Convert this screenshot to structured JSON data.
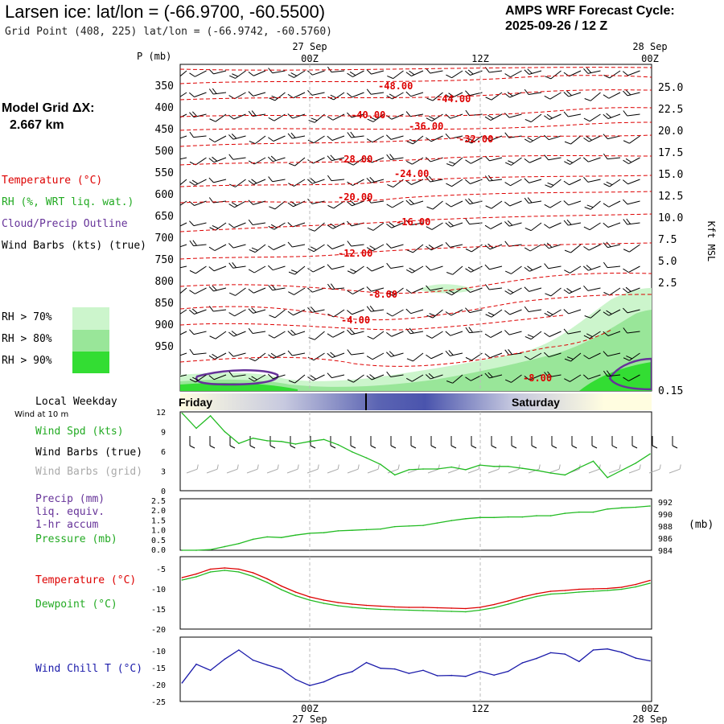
{
  "header": {
    "title": "Larsen ice:  lat/lon = (-66.9700, -60.5500)",
    "subtitle": "Grid Point (408, 225) lat/lon = (-66.9742, -60.5760)",
    "cycle_line1": "AMPS WRF Forecast Cycle:",
    "cycle_line2": "2025-09-26 / 12  Z"
  },
  "time_axis": {
    "top_labels": [
      {
        "day": "27 Sep",
        "hour": "00Z"
      },
      {
        "day": "",
        "hour": "12Z"
      },
      {
        "day": "28 Sep",
        "hour": "00Z"
      }
    ],
    "bottom_labels": [
      {
        "hour": "00Z",
        "day": "27 Sep"
      },
      {
        "hour": "12Z",
        "day": ""
      },
      {
        "hour": "00Z",
        "day": "28 Sep"
      }
    ]
  },
  "left_legend": {
    "model_grid_title": "Model Grid ΔX:",
    "model_grid_value": "2.667 km",
    "temperature": "Temperature (°C)",
    "rh": "RH (%, WRT liq. wat.)",
    "cloud": "Cloud/Precip Outline",
    "wind": "Wind Barbs (kts) (true)",
    "rh_levels": [
      "RH > 70%",
      "RH > 80%",
      "RH > 90%"
    ],
    "rh_colors": [
      "#ccf5cc",
      "#99e699",
      "#33dd33"
    ]
  },
  "colors": {
    "temperature": "#dd0000",
    "rh": "#22aa22",
    "cloud": "#663399",
    "dewpoint": "#22bb22",
    "windchill": "#1a1aaa",
    "grid_wind": "#aaaaaa"
  },
  "chart_data": [
    {
      "type": "heatmap",
      "name": "vertical cross-section",
      "y_axis_label": "P (mb)",
      "pressure_ticks": [
        "350",
        "400",
        "450",
        "500",
        "550",
        "600",
        "650",
        "700",
        "750",
        "800",
        "850",
        "900",
        "950"
      ],
      "height_axis_label": "Kft MSL",
      "height_ticks": [
        "25.0",
        "22.5",
        "20.0",
        "17.5",
        "15.0",
        "12.5",
        "10.0",
        "7.5",
        "5.0",
        "2.5",
        "0.15"
      ],
      "isotherm_labels": [
        "-48.00",
        "-44.00",
        "-40.00",
        "-36.00",
        "-32.00",
        "-28.00",
        "-24.00",
        "-20.00",
        "-16.00",
        "-12.00",
        "-8.00",
        "-4.00",
        "-8.00"
      ]
    },
    {
      "type": "table",
      "name": "local weekday bar",
      "title": "Local Weekday",
      "days": [
        "Friday",
        "Saturday"
      ]
    },
    {
      "type": "line",
      "name": "wind at 10 m",
      "title": "Wind at 10 m",
      "labels": [
        "Wind Spd (kts)",
        "Wind Barbs (true)",
        "Wind Barbs (grid)"
      ],
      "y_ticks": [
        "12",
        "9",
        "6",
        "3",
        "0"
      ],
      "ylim": [
        0,
        12
      ],
      "x": [
        -9,
        -8,
        -7,
        -6,
        -5,
        -4,
        -3,
        -2,
        -1,
        0,
        1,
        2,
        3,
        4,
        5,
        6,
        7,
        8,
        9,
        10,
        11,
        12,
        13,
        14,
        15,
        16,
        17,
        18,
        19,
        20,
        21,
        22,
        23,
        24
      ],
      "values": [
        11.8,
        9.5,
        11.4,
        9.0,
        7.2,
        8.0,
        7.6,
        7.5,
        7.1,
        7.5,
        7.8,
        7.0,
        5.9,
        5.0,
        4.0,
        2.4,
        3.2,
        3.3,
        3.3,
        3.6,
        3.2,
        3.9,
        3.7,
        3.7,
        3.4,
        3.1,
        2.7,
        2.4,
        3.5,
        4.5,
        2.0,
        3.1,
        4.2,
        5.6
      ]
    },
    {
      "type": "line",
      "name": "precip and pressure",
      "labels": [
        "Precip (mm)",
        "liq. equiv.",
        "1-hr accum",
        "Pressure (mb)"
      ],
      "y_ticks_left": [
        "2.5",
        "2.0",
        "1.5",
        "1.0",
        "0.5",
        "0.0"
      ],
      "y_ticks_right": [
        "992",
        "990",
        "988",
        "986",
        "984"
      ],
      "right_unit": "(mb)",
      "ylim": [
        984,
        992.5
      ],
      "x": [
        -9,
        -8,
        -7,
        -6,
        -5,
        -4,
        -3,
        -2,
        -1,
        0,
        1,
        2,
        3,
        4,
        5,
        6,
        7,
        8,
        9,
        10,
        11,
        12,
        13,
        14,
        15,
        16,
        17,
        18,
        19,
        20,
        21,
        22,
        23,
        24
      ],
      "values": [
        984.0,
        984.0,
        984.1,
        984.6,
        985.1,
        985.8,
        986.2,
        986.1,
        986.5,
        986.8,
        986.9,
        987.2,
        987.3,
        987.4,
        987.5,
        987.9,
        988.0,
        988.1,
        988.5,
        988.9,
        989.2,
        989.4,
        989.4,
        989.5,
        989.5,
        989.7,
        989.7,
        990.1,
        990.3,
        990.3,
        990.8,
        991.0,
        991.1,
        991.3
      ]
    },
    {
      "type": "line",
      "name": "temperature and dewpoint",
      "labels": [
        "Temperature (°C)",
        "Dewpoint (°C)"
      ],
      "y_ticks": [
        "-5",
        "-10",
        "-15",
        "-20"
      ],
      "ylim": [
        -20,
        -2
      ],
      "x": [
        -9,
        -8,
        -7,
        -6,
        -5,
        -4,
        -3,
        -2,
        -1,
        0,
        1,
        2,
        3,
        4,
        5,
        6,
        7,
        8,
        9,
        10,
        11,
        12,
        13,
        14,
        15,
        16,
        17,
        18,
        19,
        20,
        21,
        22,
        23,
        24
      ],
      "series": [
        {
          "name": "Temperature",
          "values": [
            -7.2,
            -6.3,
            -5.1,
            -4.8,
            -5.1,
            -6.0,
            -7.5,
            -9.3,
            -10.8,
            -12.0,
            -12.8,
            -13.4,
            -13.8,
            -14.1,
            -14.3,
            -14.5,
            -14.6,
            -14.6,
            -14.7,
            -14.8,
            -14.9,
            -14.6,
            -13.9,
            -13.0,
            -12.0,
            -11.2,
            -10.6,
            -10.4,
            -10.1,
            -10.0,
            -9.9,
            -9.6,
            -8.9,
            -7.9
          ]
        },
        {
          "name": "Dewpoint",
          "values": [
            -7.8,
            -7.0,
            -5.8,
            -5.4,
            -5.8,
            -6.9,
            -8.4,
            -10.2,
            -11.7,
            -12.8,
            -13.6,
            -14.2,
            -14.6,
            -14.9,
            -15.1,
            -15.2,
            -15.3,
            -15.4,
            -15.5,
            -15.6,
            -15.7,
            -15.3,
            -14.7,
            -13.8,
            -12.8,
            -11.9,
            -11.3,
            -11.1,
            -10.8,
            -10.6,
            -10.4,
            -10.1,
            -9.5,
            -8.6
          ]
        }
      ]
    },
    {
      "type": "line",
      "name": "wind chill",
      "labels": [
        "Wind Chill T (°C)"
      ],
      "y_ticks": [
        "-10",
        "-15",
        "-20",
        "-25"
      ],
      "ylim": [
        -25,
        -6
      ],
      "x": [
        -9,
        -8,
        -7,
        -6,
        -5,
        -4,
        -3,
        -2,
        -1,
        0,
        1,
        2,
        3,
        4,
        5,
        6,
        7,
        8,
        9,
        10,
        11,
        12,
        13,
        14,
        15,
        16,
        17,
        18,
        19,
        20,
        21,
        22,
        23,
        24
      ],
      "values": [
        -19.5,
        -14.0,
        -15.8,
        -12.5,
        -9.8,
        -12.8,
        -14.2,
        -15.5,
        -18.5,
        -20.3,
        -19.2,
        -17.3,
        -16.2,
        -13.5,
        -15.2,
        -15.4,
        -16.7,
        -15.8,
        -17.4,
        -17.3,
        -17.6,
        -16.1,
        -17.2,
        -16.1,
        -13.6,
        -12.3,
        -10.6,
        -11.0,
        -13.2,
        -9.8,
        -9.5,
        -10.5,
        -12.2,
        -13.0
      ]
    }
  ]
}
